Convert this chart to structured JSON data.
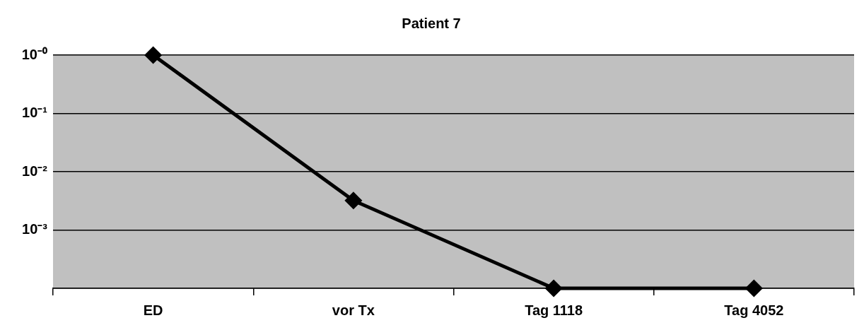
{
  "chart_data": {
    "type": "line",
    "title": "Patient 7",
    "categories": [
      "ED",
      "vor Tx",
      "Tag 1118",
      "Tag 4052"
    ],
    "series": [
      {
        "color": "#000000",
        "values": [
          1,
          0.0032,
          0.0001,
          0.0001
        ]
      }
    ],
    "log": "y",
    "ylim": [
      0.0001,
      1
    ],
    "yticks": [
      {
        "value": 0.0001,
        "label": null
      },
      {
        "value": 0.001,
        "label": "10⁻³"
      },
      {
        "value": 0.01,
        "label": "10⁻²"
      },
      {
        "value": 0.1,
        "label": "10⁻¹"
      },
      {
        "value": 1,
        "label": "10⁻⁰"
      }
    ],
    "grid": "y",
    "legend": false,
    "marker": "diamond",
    "line_style": "solid"
  }
}
